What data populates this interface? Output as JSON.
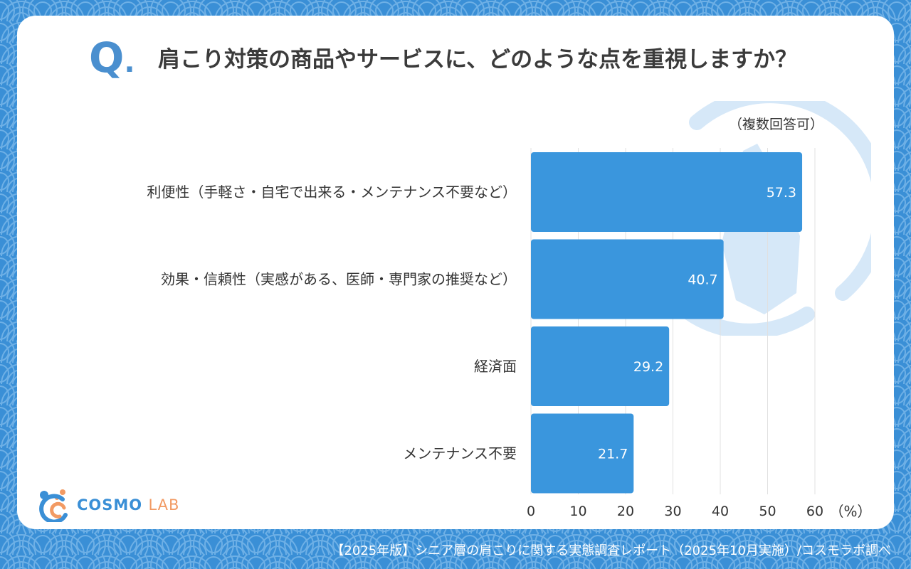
{
  "question": {
    "mark": "Q",
    "mark_dot": ".",
    "text": "肩こり対策の商品やサービスに、どのような点を重視しますか？",
    "note": "（複数回答可）"
  },
  "chart_data": {
    "type": "bar",
    "orientation": "horizontal",
    "categories": [
      "利便性（手軽さ・自宅で出来る・メンテナンス不要など）",
      "効果・信頼性（実感がある、医師・専門家の推奨など）",
      "経済面",
      "メンテナンス不要"
    ],
    "values": [
      57.3,
      40.7,
      29.2,
      21.7
    ],
    "value_labels": [
      "57.3",
      "40.7",
      "29.2",
      "21.7"
    ],
    "xlim": [
      0,
      60
    ],
    "ticks": [
      "0",
      "10",
      "20",
      "30",
      "40",
      "50",
      "60"
    ],
    "unit": "（%）",
    "bar_color": "#3a96dd",
    "grid": true
  },
  "logo": {
    "word": "COSMO",
    "word2": "LAB"
  },
  "footer": {
    "source": "【2025年版】シニア層の肩こりに関する実態調査レポート（2025年10月実施）/コスモラボ調べ"
  },
  "colors": {
    "background": "#3a8fd6",
    "accent": "#4a8fcf",
    "logo_orange": "#f29a63"
  }
}
